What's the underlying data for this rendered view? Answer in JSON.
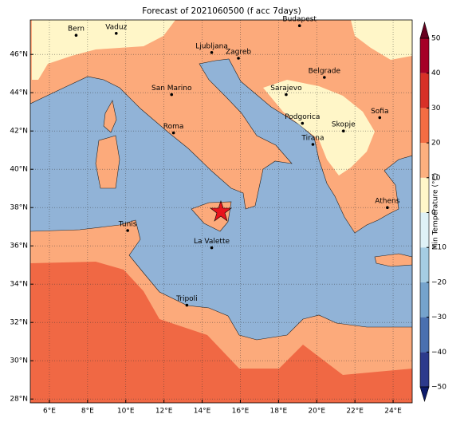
{
  "title": "Forecast of 2021060500 (f acc 7days)",
  "map": {
    "xlim": [
      5,
      25
    ],
    "ylim": [
      27.8,
      47.8
    ],
    "xticks": [
      {
        "value": 6,
        "label": "6°E"
      },
      {
        "value": 8,
        "label": "8°E"
      },
      {
        "value": 10,
        "label": "10°E"
      },
      {
        "value": 12,
        "label": "12°E"
      },
      {
        "value": 14,
        "label": "14°E"
      },
      {
        "value": 16,
        "label": "16°E"
      },
      {
        "value": 18,
        "label": "18°E"
      },
      {
        "value": 20,
        "label": "20°E"
      },
      {
        "value": 22,
        "label": "22°E"
      },
      {
        "value": 24,
        "label": "24°E"
      }
    ],
    "yticks": [
      {
        "value": 28,
        "label": "28°N"
      },
      {
        "value": 30,
        "label": "30°N"
      },
      {
        "value": 32,
        "label": "32°N"
      },
      {
        "value": 34,
        "label": "34°N"
      },
      {
        "value": 36,
        "label": "36°N"
      },
      {
        "value": 38,
        "label": "38°N"
      },
      {
        "value": 40,
        "label": "40°N"
      },
      {
        "value": 42,
        "label": "42°N"
      },
      {
        "value": 44,
        "label": "44°N"
      },
      {
        "value": 46,
        "label": "46°N"
      }
    ],
    "cities": [
      {
        "name": "Bern",
        "lon": 7.4,
        "lat": 47.0
      },
      {
        "name": "Vaduz",
        "lon": 9.5,
        "lat": 47.1
      },
      {
        "name": "Budapest",
        "lon": 19.1,
        "lat": 47.5
      },
      {
        "name": "Ljubljana",
        "lon": 14.5,
        "lat": 46.1
      },
      {
        "name": "Zagreb",
        "lon": 15.9,
        "lat": 45.8
      },
      {
        "name": "Belgrade",
        "lon": 20.4,
        "lat": 44.8
      },
      {
        "name": "San Marino",
        "lon": 12.4,
        "lat": 43.9
      },
      {
        "name": "Sarajevo",
        "lon": 18.4,
        "lat": 43.9
      },
      {
        "name": "Roma",
        "lon": 12.5,
        "lat": 41.9
      },
      {
        "name": "Podgorica",
        "lon": 19.25,
        "lat": 42.4
      },
      {
        "name": "Skopje",
        "lon": 21.4,
        "lat": 42.0
      },
      {
        "name": "Sofia",
        "lon": 23.3,
        "lat": 42.7
      },
      {
        "name": "Tirana",
        "lon": 19.8,
        "lat": 41.3
      },
      {
        "name": "Athens",
        "lon": 23.7,
        "lat": 38.0
      },
      {
        "name": "Tunis",
        "lon": 10.1,
        "lat": 36.8
      },
      {
        "name": "La Valette",
        "lon": 14.5,
        "lat": 35.9
      },
      {
        "name": "Tripoli",
        "lon": 13.2,
        "lat": 32.9
      }
    ]
  },
  "colorbar": {
    "label": "Min Temperature (°C)",
    "ticks": [
      {
        "value": -50,
        "label": "−50"
      },
      {
        "value": -40,
        "label": "−40"
      },
      {
        "value": -30,
        "label": "−30"
      },
      {
        "value": -20,
        "label": "−20"
      },
      {
        "value": -10,
        "label": "−10"
      },
      0,
      10,
      20,
      30,
      40,
      50
    ],
    "colors": [
      "#2c3a8c",
      "#4a70b0",
      "#75a3cc",
      "#a5cde3",
      "#dff2f7",
      "#fff7c9",
      "#fdb07f",
      "#f46d43",
      "#d73027",
      "#a50026"
    ]
  }
}
